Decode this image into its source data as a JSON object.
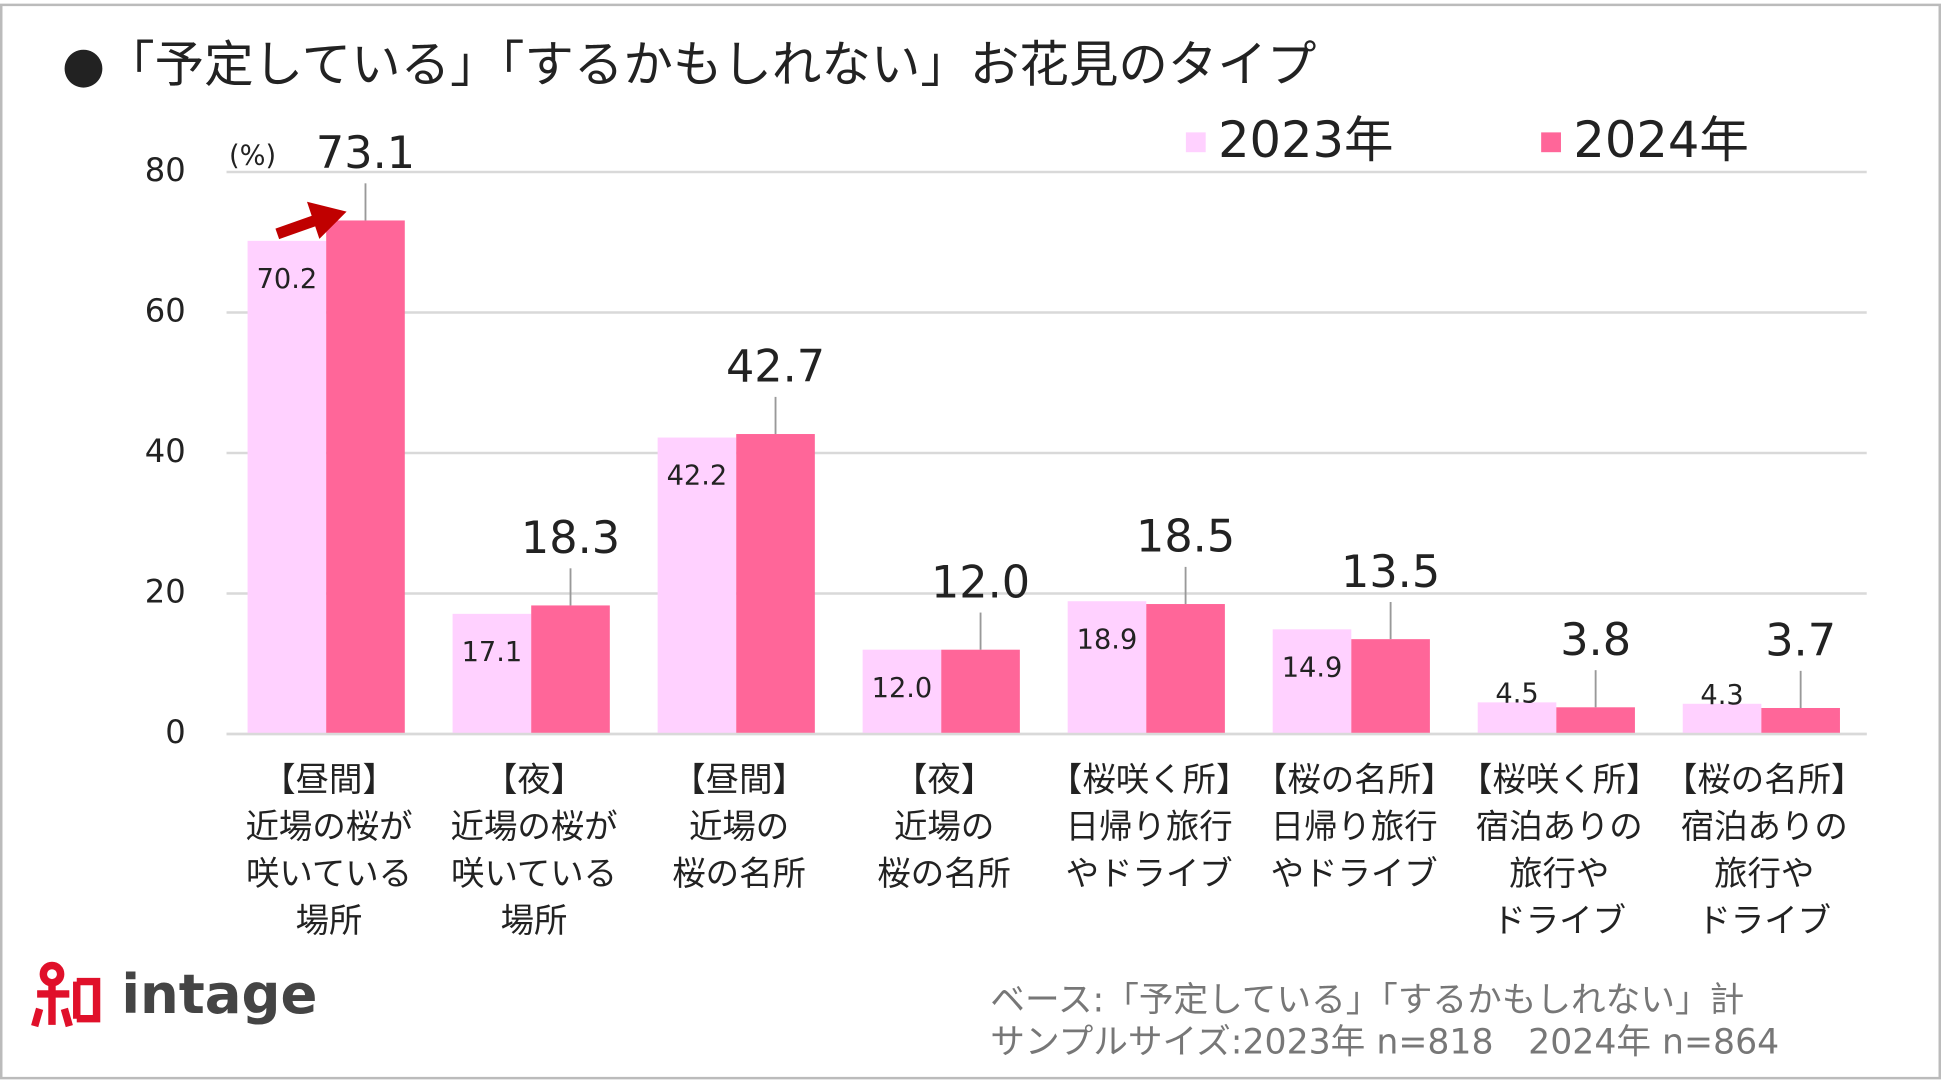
{
  "chart_data": {
    "type": "bar",
    "title": "●「予定している」「するかもしれない」お花見のタイプ",
    "y_unit": "(%)",
    "categories": [
      "【昼間】\n近場の桜が\n咲いている\n場所",
      "【夜】\n近場の桜が\n咲いている\n場所",
      "【昼間】\n近場の\n桜の名所",
      "【夜】\n近場の\n桜の名所",
      "【桜咲く所】\n日帰り旅行\nやドライブ",
      "【桜の名所】\n日帰り旅行\nやドライブ",
      "【桜咲く所】\n宿泊ありの\n旅行や\nドライブ",
      "【桜の名所】\n宿泊ありの\n旅行や\nドライブ"
    ],
    "series": [
      {
        "name": "2023年",
        "color": "#ffd1ff",
        "values": [
          70.2,
          17.1,
          42.2,
          12.0,
          18.9,
          14.9,
          4.5,
          4.3
        ],
        "value_labels": [
          "70.2",
          "17.1",
          "42.2",
          "12.0",
          "18.9",
          "14.9",
          "4.5",
          "4.3"
        ]
      },
      {
        "name": "2024年",
        "color": "#ff6699",
        "values": [
          73.1,
          18.3,
          42.7,
          12.0,
          18.5,
          13.5,
          3.8,
          3.7
        ],
        "value_labels": [
          "73.1",
          "18.3",
          "42.7",
          "12.0",
          "18.5",
          "13.5",
          "3.8",
          "3.7"
        ]
      }
    ],
    "ylim": [
      0,
      80
    ],
    "yticks": [
      0,
      20,
      40,
      60,
      80
    ],
    "grid": true,
    "notes": [
      "ベース:「予定している」「するかもしれない」計",
      "サンプルサイズ:2023年 n=818　2024年 n=864"
    ],
    "logo": "intage"
  }
}
